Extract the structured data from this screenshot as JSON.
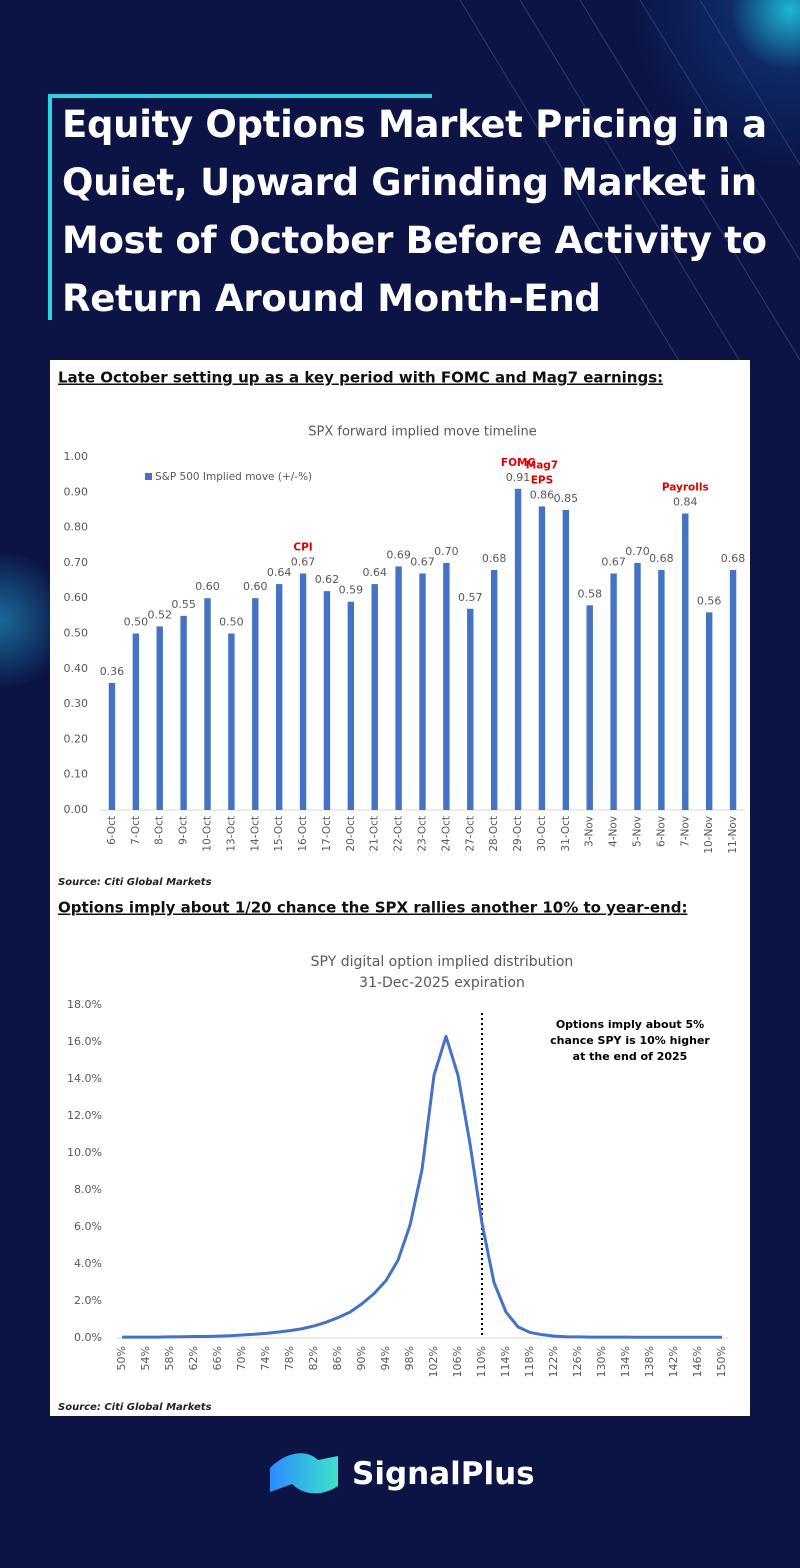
{
  "header": {
    "title": [
      "Equity Options Market Pricing in a",
      "Quiet, Upward Grinding Market in",
      "Most of October Before Activity to",
      "Return Around Month-End"
    ]
  },
  "sections": [
    {
      "caption": "Late October setting up as a key period with FOMC and Mag7 earnings:",
      "source": "Source: Citi Global Markets"
    },
    {
      "caption": "Options imply about 1/20 chance the SPX rallies another 10% to year-end:",
      "source": "Source: Citi Global Markets"
    }
  ],
  "brand": "SignalPlus",
  "chart_data": [
    {
      "type": "bar",
      "title": "SPX forward implied move timeline",
      "categories": [
        "6-Oct",
        "7-Oct",
        "8-Oct",
        "9-Oct",
        "10-Oct",
        "13-Oct",
        "14-Oct",
        "15-Oct",
        "16-Oct",
        "17-Oct",
        "20-Oct",
        "21-Oct",
        "22-Oct",
        "23-Oct",
        "24-Oct",
        "27-Oct",
        "28-Oct",
        "29-Oct",
        "30-Oct",
        "31-Oct",
        "3-Nov",
        "4-Nov",
        "5-Nov",
        "6-Nov",
        "7-Nov",
        "10-Nov",
        "11-Nov"
      ],
      "series": [
        {
          "name": "S&P 500 Implied move (+/-%)",
          "color": "#4472c4",
          "values": [
            0.36,
            0.5,
            0.52,
            0.55,
            0.6,
            0.5,
            0.6,
            0.64,
            0.67,
            0.62,
            0.59,
            0.64,
            0.69,
            0.67,
            0.7,
            0.57,
            0.68,
            0.91,
            0.86,
            0.85,
            0.58,
            0.67,
            0.7,
            0.68,
            0.84,
            0.56,
            0.68
          ],
          "value_labels": [
            "0.36",
            "0.50",
            "0.52",
            "0.55",
            "0.60",
            "0.50",
            "0.60",
            "0.64",
            "0.67",
            "0.62",
            "0.59",
            "0.64",
            "0.69",
            "0.67",
            "0.70",
            "0.57",
            "0.68",
            "0.91",
            "0.86",
            "0.85",
            "0.58",
            "0.67",
            "0.70",
            "0.68",
            "0.84",
            "0.56",
            "0.68"
          ]
        }
      ],
      "ylim": [
        0,
        1
      ],
      "yticks": [
        {
          "value": 0,
          "label": "0.00"
        },
        {
          "value": 0.1,
          "label": "0.10"
        },
        {
          "value": 0.2,
          "label": "0.20"
        },
        {
          "value": 0.3,
          "label": "0.30"
        },
        {
          "value": 0.4,
          "label": "0.40"
        },
        {
          "value": 0.5,
          "label": "0.50"
        },
        {
          "value": 0.6,
          "label": "0.60"
        },
        {
          "value": 0.7,
          "label": "0.70"
        },
        {
          "value": 0.8,
          "label": "0.80"
        },
        {
          "value": 0.9,
          "label": "0.90"
        },
        {
          "value": 1,
          "label": "1.00"
        }
      ],
      "grid": false,
      "legend": "top-left",
      "annotations": [
        {
          "text": [
            "CPI"
          ],
          "at": "16-Oct",
          "color": "#e00000"
        },
        {
          "text": [
            "FOMC"
          ],
          "at": "29-Oct",
          "color": "#e00000"
        },
        {
          "text": [
            "Mag7",
            "EPS"
          ],
          "at": "30-Oct",
          "color": "#e00000"
        },
        {
          "text": [
            "Payrolls"
          ],
          "at": "7-Nov",
          "color": "#e00000"
        }
      ]
    },
    {
      "type": "line",
      "title": "SPY digital option implied distribution",
      "subtitle": "31-Dec-2025 expiration",
      "color": "#4472c4",
      "x": [
        50,
        52,
        54,
        56,
        58,
        60,
        62,
        64,
        66,
        68,
        70,
        72,
        74,
        76,
        78,
        80,
        82,
        84,
        86,
        88,
        90,
        92,
        94,
        96,
        98,
        100,
        102,
        104,
        106,
        108,
        110,
        112,
        114,
        116,
        118,
        120,
        122,
        124,
        126,
        128,
        130,
        132,
        134,
        136,
        138,
        140,
        142,
        144,
        146,
        148,
        150
      ],
      "values": [
        0.05,
        0.05,
        0.05,
        0.05,
        0.06,
        0.07,
        0.08,
        0.08,
        0.1,
        0.12,
        0.16,
        0.2,
        0.25,
        0.32,
        0.4,
        0.5,
        0.65,
        0.85,
        1.1,
        1.4,
        1.85,
        2.4,
        3.1,
        4.2,
        6.1,
        9.1,
        14.2,
        16.3,
        14.2,
        10.5,
        6.2,
        3.0,
        1.4,
        0.6,
        0.3,
        0.18,
        0.1,
        0.07,
        0.06,
        0.05,
        0.05,
        0.05,
        0.05,
        0.04,
        0.04,
        0.04,
        0.04,
        0.04,
        0.04,
        0.04,
        0.04
      ],
      "xlim": [
        50,
        150
      ],
      "xticks": [
        {
          "value": 50,
          "label": "50%"
        },
        {
          "value": 54,
          "label": "54%"
        },
        {
          "value": 58,
          "label": "58%"
        },
        {
          "value": 62,
          "label": "62%"
        },
        {
          "value": 66,
          "label": "66%"
        },
        {
          "value": 70,
          "label": "70%"
        },
        {
          "value": 74,
          "label": "74%"
        },
        {
          "value": 78,
          "label": "78%"
        },
        {
          "value": 82,
          "label": "82%"
        },
        {
          "value": 86,
          "label": "86%"
        },
        {
          "value": 90,
          "label": "90%"
        },
        {
          "value": 94,
          "label": "94%"
        },
        {
          "value": 98,
          "label": "98%"
        },
        {
          "value": 102,
          "label": "102%"
        },
        {
          "value": 106,
          "label": "106%"
        },
        {
          "value": 110,
          "label": "110%"
        },
        {
          "value": 114,
          "label": "114%"
        },
        {
          "value": 118,
          "label": "118%"
        },
        {
          "value": 122,
          "label": "122%"
        },
        {
          "value": 126,
          "label": "126%"
        },
        {
          "value": 130,
          "label": "130%"
        },
        {
          "value": 134,
          "label": "134%"
        },
        {
          "value": 138,
          "label": "138%"
        },
        {
          "value": 142,
          "label": "142%"
        },
        {
          "value": 146,
          "label": "146%"
        },
        {
          "value": 150,
          "label": "150%"
        }
      ],
      "ylim": [
        0,
        18
      ],
      "yticks": [
        {
          "value": 0,
          "label": "0.0%"
        },
        {
          "value": 2,
          "label": "2.0%"
        },
        {
          "value": 4,
          "label": "4.0%"
        },
        {
          "value": 6,
          "label": "6.0%"
        },
        {
          "value": 8,
          "label": "8.0%"
        },
        {
          "value": 10,
          "label": "10.0%"
        },
        {
          "value": 12,
          "label": "12.0%"
        },
        {
          "value": 14,
          "label": "14.0%"
        },
        {
          "value": 16,
          "label": "16.0%"
        },
        {
          "value": 18,
          "label": "18.0%"
        }
      ],
      "grid": false,
      "vline": 110,
      "annotation": [
        "Options imply about 5%",
        "chance SPY is 10% higher",
        "at the end of 2025"
      ]
    }
  ]
}
